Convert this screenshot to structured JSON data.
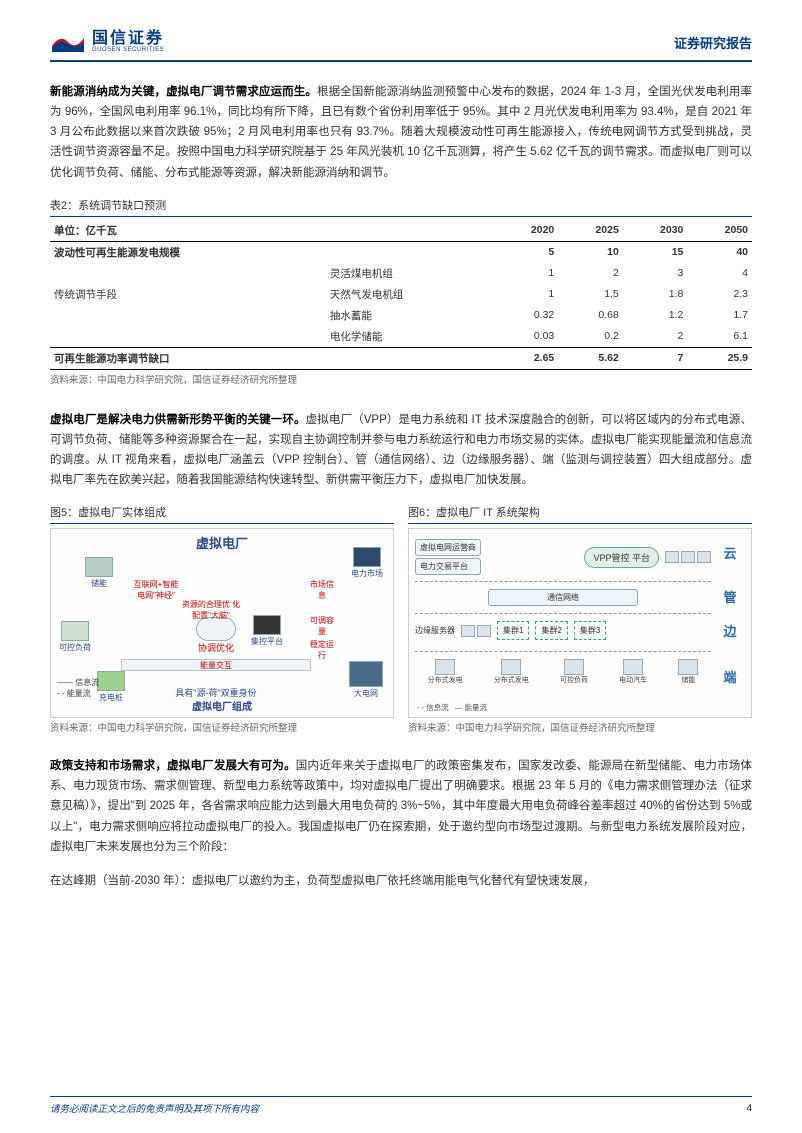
{
  "header": {
    "company_cn": "国信证券",
    "company_en": "GUOSEN SECURITIES",
    "report_label": "证券研究报告"
  },
  "para1": {
    "lead": "新能源消纳成为关键，虚拟电厂调节需求应运而生。",
    "body": "根据全国新能源消纳监测预警中心发布的数据，2024 年 1-3 月，全国光伏发电利用率为 96%，全国风电利用率 96.1%，同比均有所下降，且已有数个省份利用率低于 95%。其中 2 月光伏发电利用率为 93.4%，是自 2021 年 3 月公布此数据以来首次跌破 95%；2 月风电利用率也只有 93.7%。随着大规模波动性可再生能源接入，传统电网调节方式受到挑战，灵活性调节资源容量不足。按照中国电力科学研究院基于 25 年风光装机 10 亿千瓦测算，将产生 5.62 亿千瓦的调节需求。而虚拟电厂则可以优化调节负荷、储能、分布式能源等资源，解决新能源消纳和调节。"
  },
  "table2": {
    "caption": "表2：系统调节缺口预测",
    "unit_header": "单位：亿千瓦",
    "years": [
      "2020",
      "2025",
      "2030",
      "2050"
    ],
    "rows": [
      {
        "label": "波动性可再生能源发电规模",
        "sub": "",
        "v": [
          "5",
          "10",
          "15",
          "40"
        ]
      },
      {
        "label": "",
        "sub": "灵活煤电机组",
        "v": [
          "1",
          "2",
          "3",
          "4"
        ]
      },
      {
        "label": "传统调节手段",
        "sub": "天然气发电机组",
        "v": [
          "1",
          "1.5",
          "1.8",
          "2.3"
        ]
      },
      {
        "label": "",
        "sub": "抽水蓄能",
        "v": [
          "0.32",
          "0.68",
          "1.2",
          "1.7"
        ]
      },
      {
        "label": "",
        "sub": "电化学储能",
        "v": [
          "0.03",
          "0.2",
          "2",
          "6.1"
        ]
      },
      {
        "label": "可再生能源功率调节缺口",
        "sub": "",
        "v": [
          "2.65",
          "5.62",
          "7",
          "25.9"
        ]
      }
    ],
    "source": "资料来源：中国电力科学研究院，国信证券经济研究所整理"
  },
  "para2": {
    "lead": "虚拟电厂是解决电力供需新形势平衡的关键一环。",
    "body": "虚拟电厂（VPP）是电力系统和 IT 技术深度融合的创新，可以将区域内的分布式电源、可调节负荷、储能等多种资源聚合在一起，实现自主协调控制并参与电力系统运行和电力市场交易的实体。虚拟电厂能实现能量流和信息流的调度。从 IT 视角来看，虚拟电厂涵盖云（VPP 控制台）、管（通信网络）、边（边缘服务器）、端（监测与调控装置）四大组成部分。虚拟电厂率先在欧美兴起，随着我国能源结构快速转型、新供需平衡压力下，虚拟电厂加快发展。"
  },
  "fig5": {
    "caption": "图5：虚拟电厂实体组成",
    "title": "虚拟电厂",
    "nodes": {
      "market": "电力市场",
      "storage": "储能",
      "pv": "可控负荷",
      "ev": "充电桩",
      "platform": "集控平台",
      "grid": "大电网",
      "coord": "协调优化",
      "energy_trade": "能量交互",
      "msg1": "互联网+智能\n电网\"神经\"",
      "msg2": "资源的合理优\n化配置\"大脑\"",
      "msg3": "市场信息",
      "msg4": "可调容量",
      "msg5": "稳定运行"
    },
    "legend": {
      "info": "—— 信息流",
      "energy": "- - 能量流"
    },
    "dual_role": "具有\"源-荷\"双重身份",
    "bottom": "虚拟电厂组成",
    "source": "资料来源：中国电力科学研究院，国信证券经济研究所整理"
  },
  "fig6": {
    "caption": "图6：虚拟电厂 IT 系统架构",
    "top_left1": "虚拟电网运营商",
    "top_left2": "电力交易平台",
    "vpp": "VPP管控\n平台",
    "layers": {
      "cloud": "云",
      "pipe": "管",
      "edge": "边",
      "end": "端"
    },
    "comm": "通信网络",
    "edge_srv": "边缘服务器",
    "clusters": [
      "集群1",
      "集群2",
      "集群3"
    ],
    "bottom_items": [
      "分布式发电",
      "分布式发电",
      "可控负荷",
      "电动汽车",
      "储能"
    ],
    "legend": {
      "info": "- - 信息流",
      "energy": "— 能量流"
    },
    "source": "资料来源：中国电力科学研究院，国信证券经济研究所整理"
  },
  "para3": {
    "lead": "政策支持和市场需求，虚拟电厂发展大有可为。",
    "body": "国内近年来关于虚拟电厂的政策密集发布，国家发改委、能源局在新型储能、电力市场体系、电力现货市场、需求侧管理、新型电力系统等政策中，均对虚拟电厂提出了明确要求。根据 23 年 5 月的《电力需求侧管理办法（征求意见稿）》，提出\"到 2025 年，各省需求响应能力达到最大用电负荷的 3%~5%，其中年度最大用电负荷峰谷差率超过 40%的省份达到 5%或以上\"，电力需求侧响应将拉动虚拟电厂的投入。我国虚拟电厂仍在探索期，处于邀约型向市场型过渡期。与新型电力系统发展阶段对应，虚拟电厂未来发展也分为三个阶段："
  },
  "para4": {
    "body": "在达峰期（当前-2030 年）：虚拟电厂以邀约为主，负荷型虚拟电厂依托终端用能电气化替代有望快速发展，"
  },
  "footer": {
    "disclaimer": "请务必阅读正文之后的免责声明及其项下所有内容",
    "page": "4"
  },
  "colors": {
    "brand": "#003e7e",
    "red": "#c8102e",
    "text": "#333333"
  }
}
